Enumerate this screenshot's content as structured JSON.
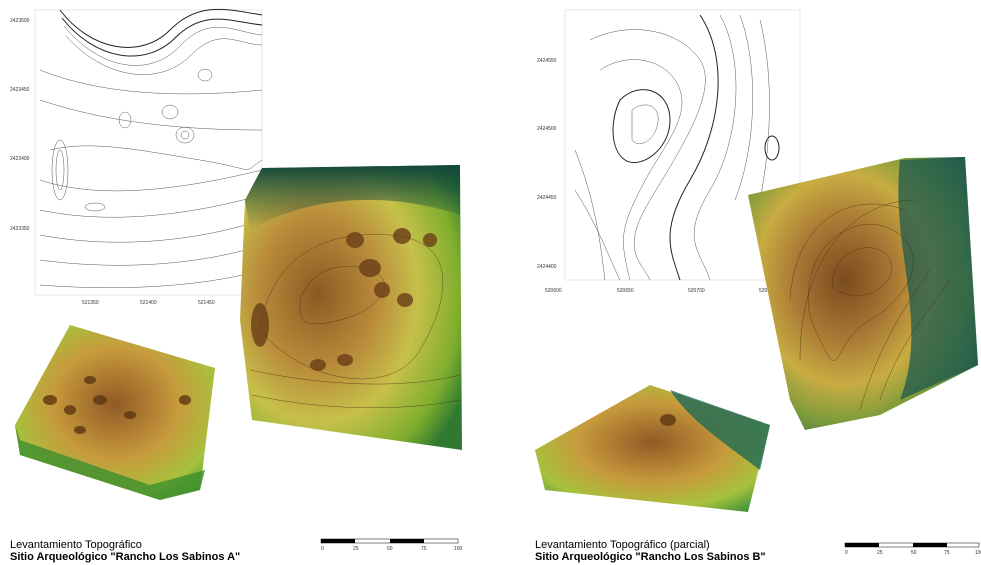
{
  "site_a": {
    "map": {
      "yticks": [
        2423500,
        2423450,
        2423400,
        2423350
      ],
      "xticks": [
        521350,
        521400,
        521450
      ]
    },
    "caption": {
      "line1": "Levantamiento Topográfico",
      "line2": "Sitio Arqueológico \"Rancho Los Sabinos A\""
    },
    "scale": [
      0,
      25,
      50,
      75,
      100
    ]
  },
  "site_b": {
    "map": {
      "yticks": [
        2424550,
        2424500,
        2424450,
        2424400
      ],
      "xticks": [
        520600,
        520650,
        520700,
        520750
      ]
    },
    "caption": {
      "line1": "Levantamiento Topográfico (parcial)",
      "line2": "Sitio Arqueológico \"Rancho Los Sabinos B\""
    },
    "scale": [
      0,
      25,
      50,
      75,
      100
    ]
  }
}
